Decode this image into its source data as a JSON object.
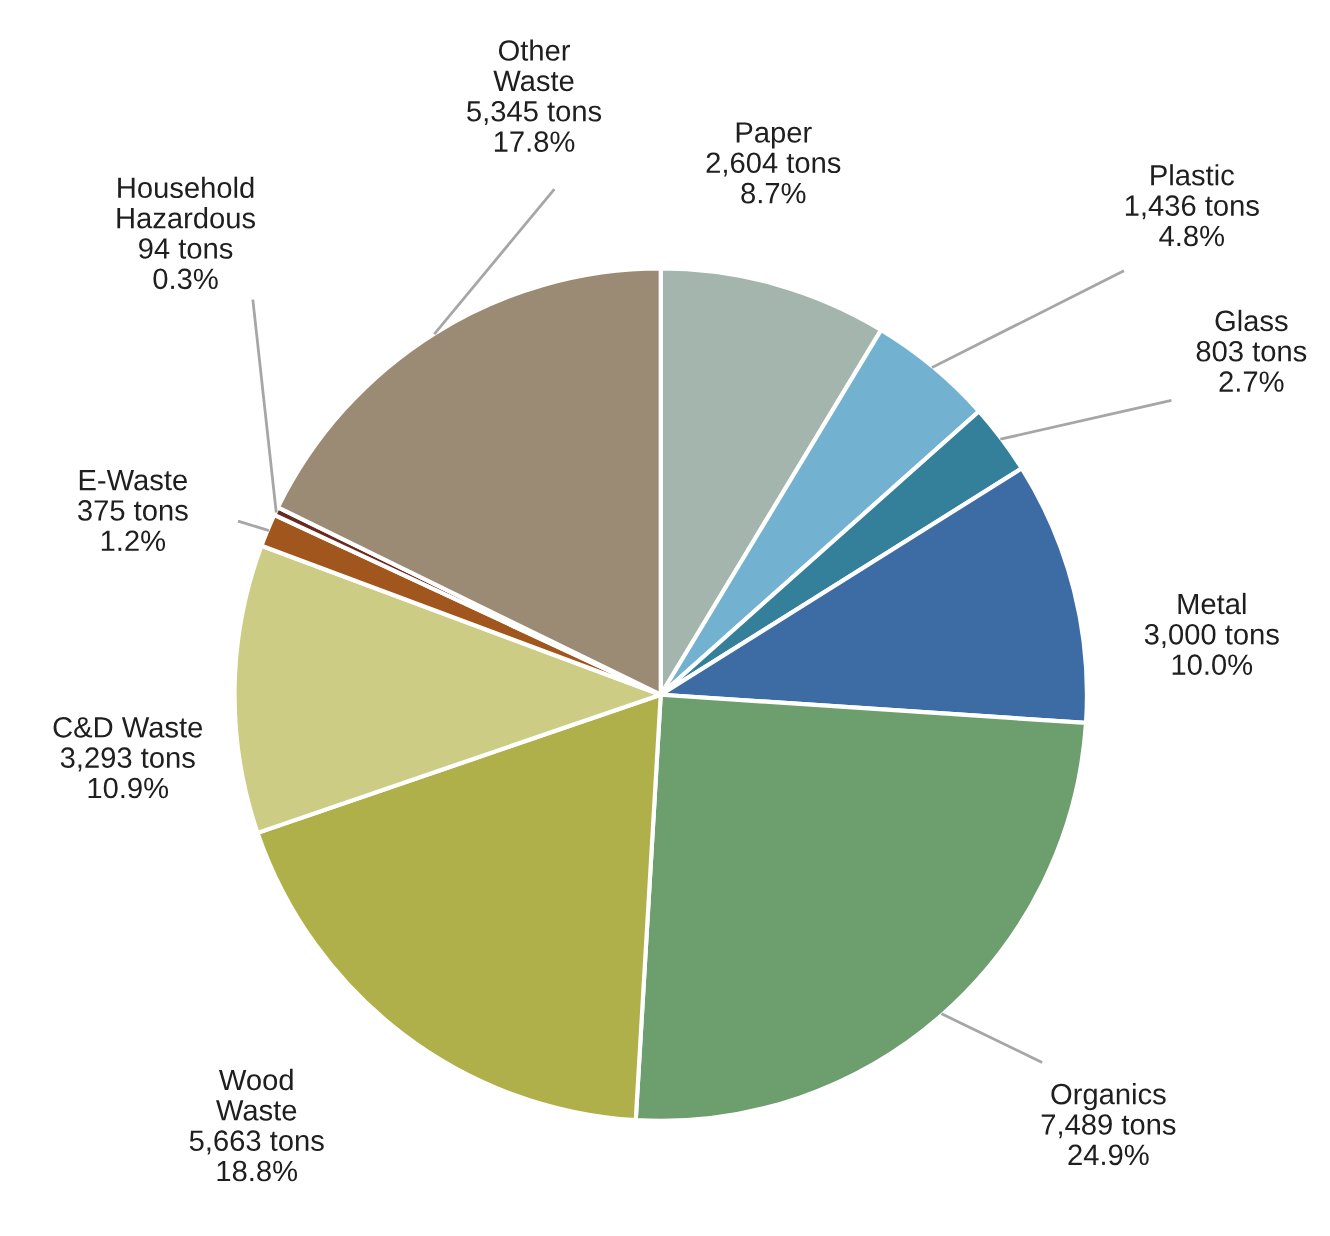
{
  "chart_data": {
    "type": "pie",
    "categories": [
      "Paper",
      "Plastic",
      "Glass",
      "Metal",
      "Organics",
      "Wood\nWaste",
      "C&D Waste",
      "E-Waste",
      "Household\nHazardous",
      "Other\nWaste"
    ],
    "values": [
      2604,
      1436,
      803,
      3000,
      7489,
      5663,
      3293,
      375,
      94,
      5345
    ],
    "value_labels": [
      "2,604 tons\n8.7%",
      "1,436 tons\n4.8%",
      "803 tons\n2.7%",
      "3,000 tons\n10.0%",
      "7,489 tons\n24.9%",
      "5,663 tons\n18.8%",
      "3,293 tons\n10.9%",
      "375 tons\n1.2%",
      "94 tons\n0.3%",
      "5,345 tons\n17.8%"
    ],
    "colors": [
      "#a3b5ad",
      "#72b1cf",
      "#34809a",
      "#3d6ba3",
      "#6d9e6d",
      "#b0b04b",
      "#cdcc85",
      "#a0561c",
      "#6b2a1f",
      "#9b8b74"
    ]
  }
}
